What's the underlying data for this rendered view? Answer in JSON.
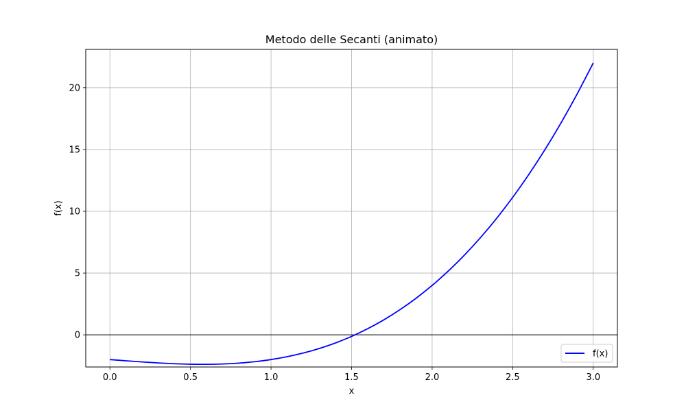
{
  "chart_data": {
    "type": "line",
    "title": "Metodo delle Secanti (animato)",
    "xlabel": "x",
    "ylabel": "f(x)",
    "xlim": [
      -0.15,
      3.15
    ],
    "ylim": [
      -2.6,
      23.1
    ],
    "xticks": [
      "0.0",
      "0.5",
      "1.0",
      "1.5",
      "2.0",
      "2.5",
      "3.0"
    ],
    "yticks": [
      "0",
      "5",
      "10",
      "15",
      "20"
    ],
    "grid": true,
    "legend_position": "bottom-right",
    "zero_line": true,
    "series": [
      {
        "name": "f(x)",
        "color": "#0000ff",
        "x": [
          0.0,
          0.1,
          0.2,
          0.3,
          0.4,
          0.5,
          0.6,
          0.7,
          0.8,
          0.9,
          1.0,
          1.1,
          1.2,
          1.3,
          1.4,
          1.5,
          1.6,
          1.7,
          1.8,
          1.9,
          2.0,
          2.1,
          2.2,
          2.3,
          2.4,
          2.5,
          2.6,
          2.7,
          2.8,
          2.9,
          3.0
        ],
        "y": [
          -2.0,
          -2.099,
          -2.192,
          -2.273,
          -2.336,
          -2.375,
          -2.384,
          -2.357,
          -2.288,
          -2.171,
          -2.0,
          -1.769,
          -1.472,
          -1.103,
          -0.656,
          -0.125,
          0.496,
          1.213,
          2.032,
          2.959,
          4.0,
          5.161,
          6.448,
          7.867,
          9.424,
          11.125,
          12.976,
          14.983,
          17.152,
          19.489,
          22.0
        ]
      }
    ],
    "colors": {
      "grid": "#b0b0b0",
      "zero_line": "#000000",
      "frame": "#000000"
    }
  }
}
